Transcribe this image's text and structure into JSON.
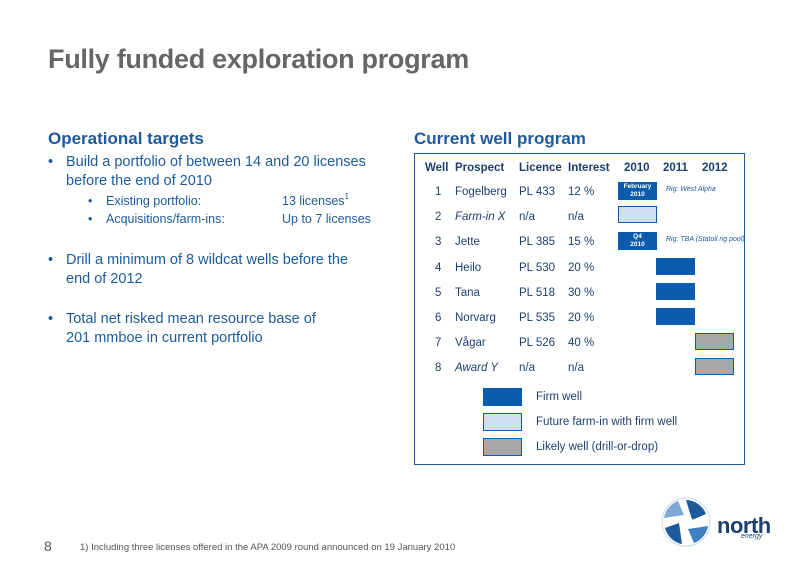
{
  "title": "Fully funded exploration program",
  "left": {
    "heading": "Operational targets",
    "bullets": [
      {
        "l1": "Build a portfolio of between 14 and 20 licenses",
        "l2": "before the end of 2010"
      },
      {
        "l1": "Drill a minimum of 8 wildcat wells before the",
        "l2": "end of 2012"
      },
      {
        "l1": "Total net risked mean resource base of",
        "l2": "201 mmboe in current portfolio"
      }
    ],
    "sub": [
      {
        "label": "Existing portfolio:",
        "value": "13 licenses",
        "sup": "1"
      },
      {
        "label": "Acquisitions/farm-ins:",
        "value": "Up to 7 licenses"
      }
    ]
  },
  "right": {
    "heading": "Current well program",
    "headers": {
      "well": "Well",
      "prospect": "Prospect",
      "licence": "Licence",
      "interest": "Interest",
      "y2010": "2010",
      "y2011": "2011",
      "y2012": "2012"
    },
    "rows": [
      {
        "well": "1",
        "prospect": "Fogelberg",
        "licence": "PL 433",
        "interest": "12 %",
        "status": "firm"
      },
      {
        "well": "2",
        "prospect": "Farm-in X",
        "licence": "n/a",
        "interest": "n/a",
        "status": "future"
      },
      {
        "well": "3",
        "prospect": "Jette",
        "licence": "PL 385",
        "interest": "15 %",
        "status": "firm"
      },
      {
        "well": "4",
        "prospect": "Heilo",
        "licence": "PL 530",
        "interest": "20 %",
        "status": "firm"
      },
      {
        "well": "5",
        "prospect": "Tana",
        "licence": "PL 518",
        "interest": "30 %",
        "status": "firm"
      },
      {
        "well": "6",
        "prospect": "Norvarg",
        "licence": "PL 535",
        "interest": "20 %",
        "status": "firm"
      },
      {
        "well": "7",
        "prospect": "Vågar",
        "licence": "PL 526",
        "interest": "40 %",
        "status": "likely"
      },
      {
        "well": "8",
        "prospect": "Award Y",
        "licence": "n/a",
        "interest": "n/a",
        "status": "likely"
      }
    ],
    "tags": {
      "feb_line1": "February",
      "feb_line2": "2010",
      "q4_line1": "Q4",
      "q4_line2": "2010",
      "rig1": "Rig: West Alpha",
      "rig3": "Rig: TBA (Statoil rig pool)"
    },
    "legend": [
      {
        "label": "Firm well",
        "status": "firm"
      },
      {
        "label": "Future farm-in with firm well",
        "status": "future"
      },
      {
        "label": "Likely well (drill-or-drop)",
        "status": "likely"
      }
    ],
    "colors": {
      "firm": "#0b5cad",
      "future": "#cfe0f5",
      "likely": "#a8a8a8"
    }
  },
  "footer": {
    "page": "8",
    "footnote": "1) Including three licenses offered in the APA 2009 round announced on 19 January 2010",
    "brand": "north",
    "brand_sub": "energy"
  }
}
